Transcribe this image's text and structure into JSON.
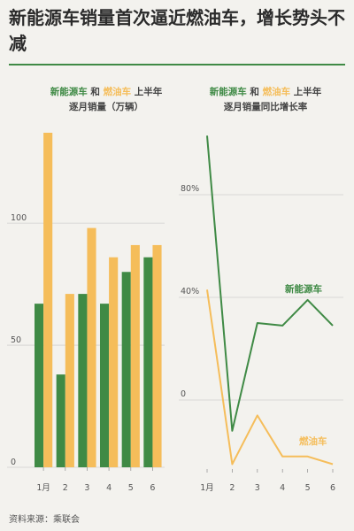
{
  "headline": "新能源车销量首次逼近燃油车，增长势头不减",
  "source": "资料来源：乘联会",
  "colors": {
    "nev": "#3f8a45",
    "ice": "#f5bd5a",
    "text": "#333333",
    "grid": "#cfcfcf"
  },
  "chart_data": [
    {
      "type": "bar",
      "title_parts": {
        "nev": "新能源车",
        "and": " 和 ",
        "ice": "燃油车",
        "suffix": " 上半年",
        "line2": "逐月销量（万辆）"
      },
      "categories": [
        "1月",
        "2",
        "3",
        "4",
        "5",
        "6"
      ],
      "series": [
        {
          "name": "新能源车",
          "values": [
            67,
            38,
            71,
            67,
            80,
            86
          ]
        },
        {
          "name": "燃油车",
          "values": [
            137,
            71,
            98,
            86,
            91,
            91
          ]
        }
      ],
      "yticks": [
        0,
        50,
        100
      ],
      "ylim": [
        0,
        137
      ],
      "grid": true
    },
    {
      "type": "line",
      "title_parts": {
        "nev": "新能源车",
        "and": " 和 ",
        "ice": "燃油车",
        "suffix": " 上半年",
        "line2": "逐月销量同比增长率"
      },
      "x": [
        "1月",
        "2",
        "3",
        "4",
        "5",
        "6"
      ],
      "series": [
        {
          "name": "新能源车",
          "values": [
            103,
            -12,
            30,
            29,
            39,
            29
          ]
        },
        {
          "name": "燃油车",
          "values": [
            43,
            -25,
            -6,
            -22,
            -22,
            -25
          ]
        }
      ],
      "yticks": [
        "0",
        "40%",
        "80%"
      ],
      "ytick_values": [
        0,
        40,
        80
      ],
      "ylim": [
        -25,
        103
      ],
      "grid": true
    }
  ]
}
